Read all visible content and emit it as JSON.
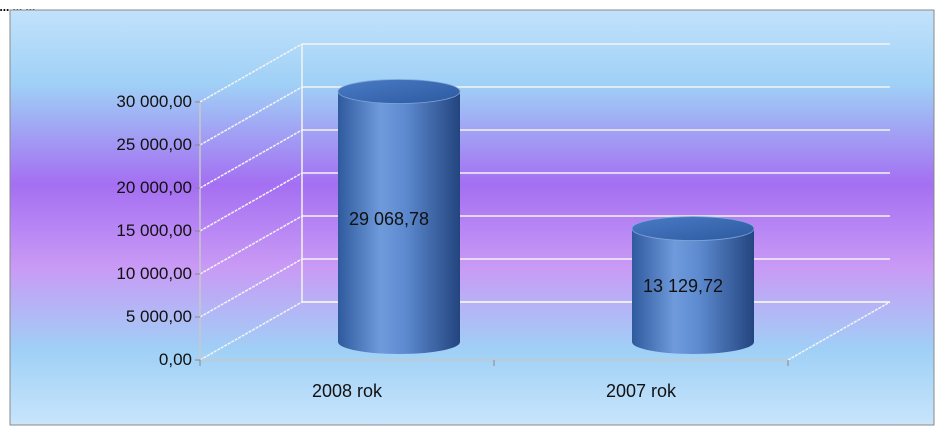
{
  "header": {
    "partial_text": "... ... ..."
  },
  "colors": {
    "bar_light": "#7fa6e0",
    "bar_mid": "#4f7fc7",
    "bar_dark": "#2c5494",
    "bar_top": "#3e6db5",
    "bg_top": "#9fd3f6",
    "bg_mid": "#a874f2",
    "bg_bottom": "#b0d8f7",
    "grid": "#f4f4f4"
  },
  "chart_data": {
    "type": "bar",
    "style": "3d-cylinder",
    "categories": [
      "2008 rok",
      "2007 rok"
    ],
    "values": [
      29068.78,
      13129.72
    ],
    "data_labels": [
      "29 068,78",
      "13 129,72"
    ],
    "ylim": [
      0,
      30000
    ],
    "y_ticks": [
      0,
      5000,
      10000,
      15000,
      20000,
      25000,
      30000
    ],
    "y_tick_labels": [
      "0,00",
      "5 000,00",
      "10 000,00",
      "15 000,00",
      "20 000,00",
      "25 000,00",
      "30 000,00"
    ],
    "grid": true,
    "legend": "none"
  }
}
